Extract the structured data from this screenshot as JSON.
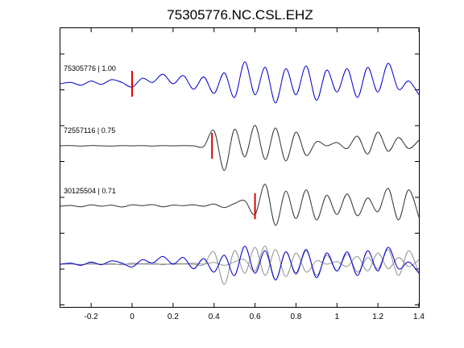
{
  "chart_data": {
    "type": "line",
    "title": "75305776.NC.CSL.EHZ",
    "xlabel": "",
    "ylabel": "",
    "xlim": [
      -0.35,
      1.4
    ],
    "x_ticks": [
      "-0.2",
      "0",
      "0.2",
      "0.4",
      "0.6",
      "0.8",
      "1",
      "1.2",
      "1.4"
    ],
    "x_tick_values": [
      -0.2,
      0,
      0.2,
      0.4,
      0.6,
      0.8,
      1.0,
      1.2,
      1.4
    ],
    "grid": false,
    "legend": "none",
    "series": [
      {
        "name": "75305776 | 1.00",
        "color": "#0000cc",
        "pick_time": 0.0,
        "pick_color": "#dd0000",
        "x": [
          -0.35,
          -0.3,
          -0.25,
          -0.2,
          -0.15,
          -0.1,
          -0.05,
          0.0,
          0.05,
          0.1,
          0.15,
          0.2,
          0.25,
          0.3,
          0.35,
          0.4,
          0.45,
          0.5,
          0.55,
          0.6,
          0.65,
          0.7,
          0.75,
          0.8,
          0.85,
          0.9,
          0.95,
          1.0,
          1.05,
          1.1,
          1.15,
          1.2,
          1.25,
          1.3,
          1.35,
          1.4
        ],
        "y": [
          0.0,
          0.05,
          -0.05,
          0.1,
          -0.02,
          0.15,
          0.05,
          -0.12,
          0.2,
          0.05,
          0.35,
          0.0,
          0.3,
          -0.2,
          0.25,
          -0.35,
          0.4,
          -0.5,
          0.8,
          -0.4,
          0.6,
          -0.7,
          0.55,
          -0.4,
          0.65,
          -0.6,
          0.5,
          -0.3,
          0.55,
          -0.5,
          0.6,
          -0.3,
          0.75,
          -0.2,
          0.1,
          -0.4
        ]
      },
      {
        "name": "72557116 | 0.75",
        "color": "#333333",
        "pick_time": 0.39,
        "pick_color": "#dd0000",
        "x": [
          -0.35,
          -0.3,
          -0.25,
          -0.2,
          -0.15,
          -0.1,
          -0.05,
          0.0,
          0.05,
          0.1,
          0.15,
          0.2,
          0.25,
          0.3,
          0.35,
          0.4,
          0.45,
          0.5,
          0.55,
          0.6,
          0.65,
          0.7,
          0.75,
          0.8,
          0.85,
          0.9,
          0.95,
          1.0,
          1.05,
          1.1,
          1.15,
          1.2,
          1.25,
          1.3,
          1.35,
          1.4
        ],
        "y": [
          0.0,
          0.01,
          -0.01,
          0.01,
          0.0,
          -0.01,
          0.01,
          0.0,
          0.01,
          -0.01,
          0.01,
          0.0,
          0.01,
          0.0,
          -0.02,
          0.55,
          -0.9,
          0.6,
          -0.4,
          0.75,
          -0.5,
          0.65,
          -0.55,
          0.5,
          -0.35,
          0.15,
          0.0,
          0.12,
          -0.1,
          0.35,
          -0.3,
          0.5,
          -0.2,
          0.3,
          -0.1,
          0.2
        ]
      },
      {
        "name": "30125504 | 0.71",
        "color": "#333333",
        "pick_time": 0.6,
        "pick_color": "#dd0000",
        "x": [
          -0.35,
          -0.3,
          -0.25,
          -0.2,
          -0.15,
          -0.1,
          -0.05,
          0.0,
          0.05,
          0.1,
          0.15,
          0.2,
          0.25,
          0.3,
          0.35,
          0.4,
          0.45,
          0.5,
          0.55,
          0.6,
          0.65,
          0.7,
          0.75,
          0.8,
          0.85,
          0.9,
          0.95,
          1.0,
          1.05,
          1.1,
          1.15,
          1.2,
          1.25,
          1.3,
          1.35,
          1.4
        ],
        "y": [
          0.0,
          0.03,
          -0.02,
          0.05,
          0.0,
          0.04,
          -0.03,
          0.05,
          0.02,
          0.06,
          -0.02,
          0.04,
          0.02,
          0.05,
          0.0,
          0.08,
          -0.05,
          0.1,
          0.2,
          -0.3,
          0.8,
          -0.7,
          0.55,
          -0.45,
          0.6,
          -0.5,
          0.4,
          -0.3,
          0.45,
          -0.35,
          0.3,
          -0.2,
          0.65,
          -0.5,
          0.6,
          -0.4
        ]
      }
    ]
  }
}
